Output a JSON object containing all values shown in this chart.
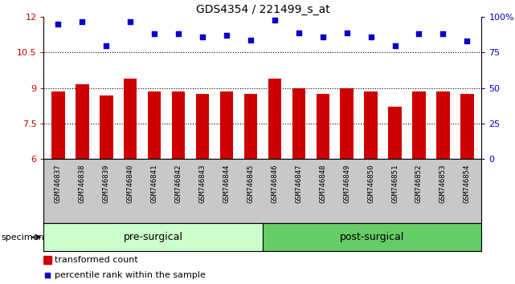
{
  "title": "GDS4354 / 221499_s_at",
  "categories": [
    "GSM746837",
    "GSM746838",
    "GSM746839",
    "GSM746840",
    "GSM746841",
    "GSM746842",
    "GSM746843",
    "GSM746844",
    "GSM746845",
    "GSM746846",
    "GSM746847",
    "GSM746848",
    "GSM746849",
    "GSM746850",
    "GSM746851",
    "GSM746852",
    "GSM746853",
    "GSM746854"
  ],
  "bar_values": [
    8.85,
    9.15,
    8.7,
    9.4,
    8.85,
    8.85,
    8.75,
    8.85,
    8.75,
    9.4,
    9.0,
    8.75,
    9.0,
    8.85,
    8.2,
    8.85,
    8.85,
    8.75
  ],
  "dot_values": [
    95,
    97,
    80,
    97,
    88,
    88,
    86,
    87,
    84,
    98,
    89,
    86,
    89,
    86,
    80,
    88,
    88,
    83
  ],
  "ylim_left": [
    6,
    12
  ],
  "ylim_right": [
    0,
    100
  ],
  "yticks_left": [
    6,
    7.5,
    9,
    10.5,
    12
  ],
  "yticks_right": [
    0,
    25,
    50,
    75,
    100
  ],
  "bar_color": "#cc0000",
  "dot_color": "#0000cc",
  "grid_values": [
    7.5,
    9.0,
    10.5
  ],
  "pre_surgical_count": 9,
  "group_labels": [
    "pre-surgical",
    "post-surgical"
  ],
  "legend_bar_label": "transformed count",
  "legend_dot_label": "percentile rank within the sample",
  "specimen_label": "specimen",
  "tick_area_color": "#c8c8c8",
  "pre_bg": "#ccffcc",
  "post_bg": "#66cc66",
  "title_fontsize": 10,
  "axis_fontsize": 8,
  "tick_fontsize": 6.5,
  "legend_fontsize": 8
}
